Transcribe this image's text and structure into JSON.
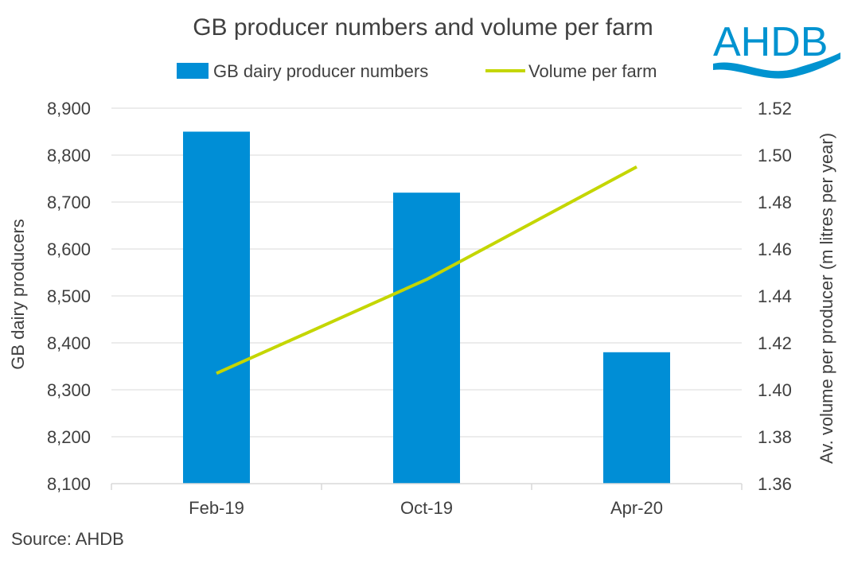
{
  "chart_data": {
    "type": "bar",
    "title": "GB producer numbers and volume per farm",
    "categories": [
      "Feb-19",
      "Oct-19",
      "Apr-20"
    ],
    "series": [
      {
        "name": "GB dairy producer numbers",
        "type": "bar",
        "axis": "left",
        "values": [
          8850,
          8720,
          8380
        ],
        "color": "#008ED6"
      },
      {
        "name": "Volume per farm",
        "type": "line",
        "axis": "right",
        "values": [
          1.407,
          1.447,
          1.495
        ],
        "color": "#C4D600"
      }
    ],
    "ylabel": "GB dairy producers",
    "ylabel_right": "Av. volume per producer (m litres per year)",
    "ylim": [
      8100,
      8900
    ],
    "ylim_right": [
      1.36,
      1.52
    ],
    "yticks": [
      "8,100",
      "8,200",
      "8,300",
      "8,400",
      "8,500",
      "8,600",
      "8,700",
      "8,800",
      "8,900"
    ],
    "yticks_right": [
      "1.36",
      "1.38",
      "1.40",
      "1.42",
      "1.44",
      "1.46",
      "1.48",
      "1.50",
      "1.52"
    ],
    "legend_position": "top",
    "grid": true
  },
  "source": "Source: AHDB",
  "logo_text": "AHDB",
  "colors": {
    "bar": "#008ED6",
    "line": "#C4D600",
    "logo": "#0093D0",
    "grid": "#D9D9D9",
    "text": "#404040"
  }
}
